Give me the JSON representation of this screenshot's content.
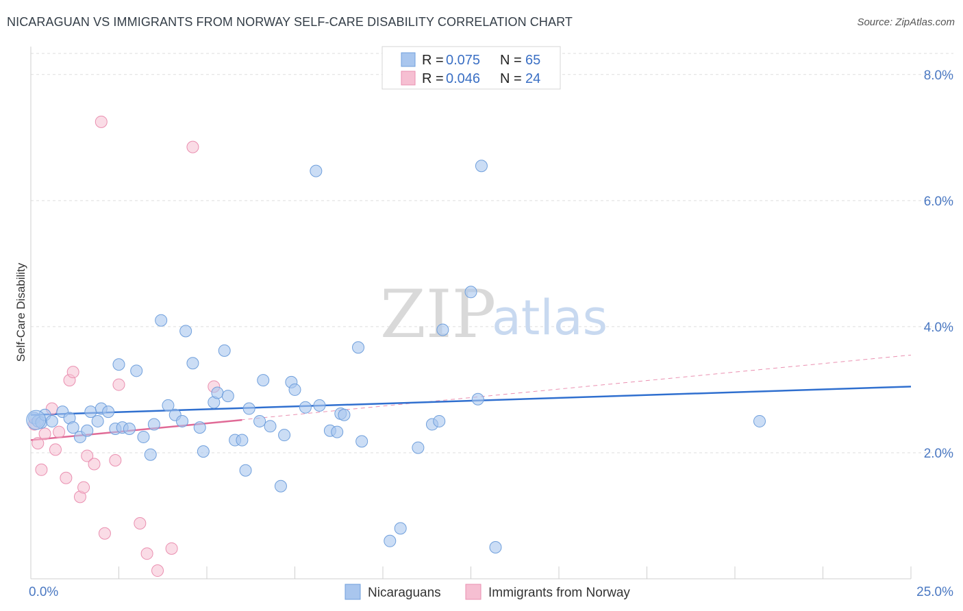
{
  "title": "NICARAGUAN VS IMMIGRANTS FROM NORWAY SELF-CARE DISABILITY CORRELATION CHART",
  "source": "Source: ZipAtlas.com",
  "watermark": {
    "zip": "ZIP",
    "atlas": "atlas"
  },
  "colors": {
    "blue_fill": "#a9c6ee",
    "blue_stroke": "#6f9fdc",
    "blue_line": "#2f6fcf",
    "pink_fill": "#f6bfd2",
    "pink_stroke": "#ea8fb0",
    "pink_line": "#e06a96",
    "axis_text": "#4a78c2",
    "grid": "#dedede"
  },
  "legend": {
    "rows": [
      {
        "r_label": "R = ",
        "r_value": "0.075",
        "n_label": "N = ",
        "n_value": "65"
      },
      {
        "r_label": "R = ",
        "r_value": "0.046",
        "n_label": "N = ",
        "n_value": "24"
      }
    ]
  },
  "bottom_legend": [
    "Nicaraguans",
    "Immigrants from Norway"
  ],
  "chart_data": {
    "type": "scatter",
    "title": "NICARAGUAN VS IMMIGRANTS FROM NORWAY SELF-CARE DISABILITY CORRELATION CHART",
    "xlabel": "",
    "ylabel": "Self-Care Disability",
    "xlim": [
      0,
      25
    ],
    "ylim": [
      0,
      8.4
    ],
    "x_tick_labels": [
      "0.0%",
      "25.0%"
    ],
    "y_ticks": [
      2,
      4,
      6,
      8
    ],
    "y_tick_labels": [
      "2.0%",
      "4.0%",
      "6.0%",
      "8.0%"
    ],
    "grid": true,
    "legend_position": "top-center",
    "series": [
      {
        "name": "Nicaraguans",
        "R": 0.075,
        "N": 65,
        "trend": {
          "x": [
            0,
            25
          ],
          "y": [
            2.6,
            3.05
          ]
        },
        "points": [
          [
            0.1,
            2.55
          ],
          [
            0.2,
            2.5
          ],
          [
            0.3,
            2.48
          ],
          [
            0.4,
            2.6
          ],
          [
            0.6,
            2.5
          ],
          [
            0.9,
            2.65
          ],
          [
            1.1,
            2.55
          ],
          [
            1.2,
            2.4
          ],
          [
            1.4,
            2.25
          ],
          [
            1.6,
            2.35
          ],
          [
            1.7,
            2.65
          ],
          [
            1.9,
            2.5
          ],
          [
            2.0,
            2.7
          ],
          [
            2.2,
            2.65
          ],
          [
            2.4,
            2.38
          ],
          [
            2.5,
            3.4
          ],
          [
            2.6,
            2.4
          ],
          [
            2.8,
            2.38
          ],
          [
            3.0,
            3.3
          ],
          [
            3.2,
            2.25
          ],
          [
            3.4,
            1.97
          ],
          [
            3.5,
            2.45
          ],
          [
            3.7,
            4.1
          ],
          [
            3.9,
            2.75
          ],
          [
            4.1,
            2.6
          ],
          [
            4.3,
            2.5
          ],
          [
            4.4,
            3.93
          ],
          [
            4.6,
            3.42
          ],
          [
            4.8,
            2.4
          ],
          [
            4.9,
            2.02
          ],
          [
            5.2,
            2.8
          ],
          [
            5.3,
            2.95
          ],
          [
            5.5,
            3.62
          ],
          [
            5.6,
            2.9
          ],
          [
            5.8,
            2.2
          ],
          [
            6.0,
            2.2
          ],
          [
            6.1,
            1.72
          ],
          [
            6.2,
            2.7
          ],
          [
            6.5,
            2.5
          ],
          [
            6.6,
            3.15
          ],
          [
            6.8,
            2.42
          ],
          [
            7.1,
            1.47
          ],
          [
            7.2,
            2.28
          ],
          [
            7.4,
            3.12
          ],
          [
            7.5,
            3.0
          ],
          [
            7.8,
            2.72
          ],
          [
            8.2,
            2.75
          ],
          [
            8.1,
            6.47
          ],
          [
            8.5,
            2.35
          ],
          [
            8.7,
            2.33
          ],
          [
            8.8,
            2.62
          ],
          [
            8.9,
            2.6
          ],
          [
            9.3,
            3.67
          ],
          [
            9.4,
            2.18
          ],
          [
            10.2,
            0.6
          ],
          [
            10.5,
            0.8
          ],
          [
            11.0,
            2.08
          ],
          [
            11.4,
            2.45
          ],
          [
            11.6,
            2.5
          ],
          [
            11.7,
            3.95
          ],
          [
            12.5,
            4.55
          ],
          [
            12.7,
            2.85
          ],
          [
            12.8,
            6.55
          ],
          [
            13.2,
            0.5
          ],
          [
            20.7,
            2.5
          ]
        ]
      },
      {
        "name": "Immigrants from Norway",
        "R": 0.046,
        "N": 24,
        "trend": {
          "x": [
            0,
            6
          ],
          "y": [
            2.2,
            2.52
          ]
        },
        "trend_extended": {
          "x": [
            0,
            25
          ],
          "y": [
            2.2,
            3.55
          ]
        },
        "points": [
          [
            0.1,
            2.45
          ],
          [
            0.2,
            2.15
          ],
          [
            0.3,
            1.73
          ],
          [
            0.4,
            2.3
          ],
          [
            0.6,
            2.7
          ],
          [
            0.7,
            2.05
          ],
          [
            0.8,
            2.33
          ],
          [
            1.0,
            1.6
          ],
          [
            1.1,
            3.15
          ],
          [
            1.2,
            3.28
          ],
          [
            1.4,
            1.3
          ],
          [
            1.5,
            1.45
          ],
          [
            1.6,
            1.95
          ],
          [
            1.8,
            1.82
          ],
          [
            2.0,
            7.25
          ],
          [
            2.1,
            0.72
          ],
          [
            2.4,
            1.88
          ],
          [
            2.5,
            3.08
          ],
          [
            3.1,
            0.88
          ],
          [
            3.3,
            0.4
          ],
          [
            3.6,
            0.13
          ],
          [
            4.0,
            0.48
          ],
          [
            4.6,
            6.85
          ],
          [
            5.2,
            3.05
          ]
        ]
      }
    ]
  }
}
